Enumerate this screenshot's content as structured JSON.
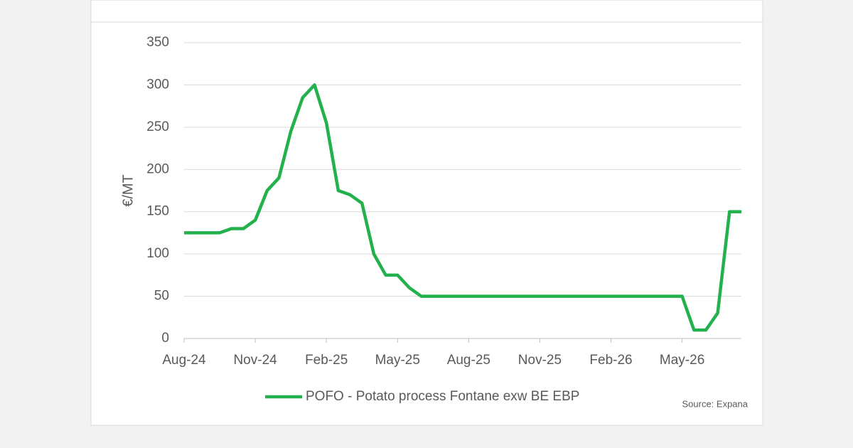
{
  "chart_data": {
    "type": "line",
    "ylabel": "€/MT",
    "categories": [
      "Aug-24",
      null,
      null,
      null,
      null,
      null,
      "Nov-24",
      null,
      null,
      null,
      null,
      null,
      "Feb-25",
      null,
      null,
      null,
      null,
      null,
      "May-25",
      null,
      null,
      null,
      null,
      null,
      "Aug-25",
      null,
      null,
      null,
      null,
      null,
      "Nov-25",
      null,
      null,
      null,
      null,
      null,
      "Feb-26",
      null,
      null,
      null,
      null,
      null,
      "May-26",
      null,
      null,
      null,
      null,
      null
    ],
    "series": [
      {
        "name": "POFO - Potato process Fontane exw BE EBP",
        "color": "#22b14c",
        "values": [
          125,
          125,
          125,
          125,
          130,
          130,
          140,
          175,
          190,
          245,
          285,
          300,
          255,
          175,
          170,
          160,
          100,
          75,
          75,
          60,
          50,
          50,
          50,
          50,
          50,
          50,
          50,
          50,
          50,
          50,
          50,
          50,
          50,
          50,
          50,
          50,
          50,
          50,
          50,
          50,
          50,
          50,
          50,
          10,
          10,
          30,
          150,
          150
        ]
      }
    ],
    "ylim": [
      0,
      350
    ],
    "yticks": [
      0,
      50,
      100,
      150,
      200,
      250,
      300,
      350
    ],
    "grid": true,
    "legend": "bottom",
    "source": "Source: Expana"
  }
}
